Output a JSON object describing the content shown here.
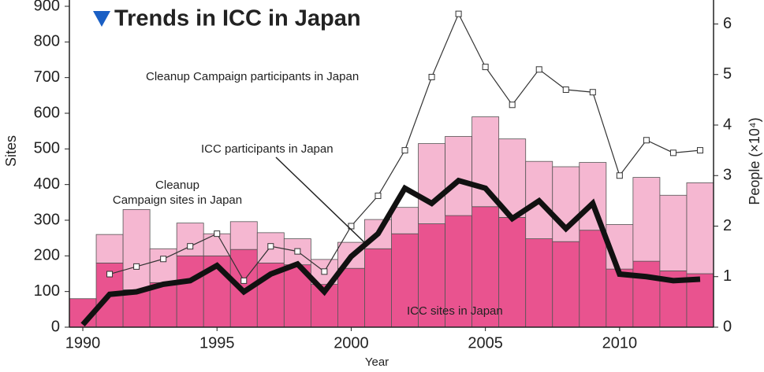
{
  "chart_data": {
    "type": "bar",
    "title": "Trends in ICC in Japan",
    "x_label": "Year",
    "y_label": "Sites",
    "y2_label": "People (×10⁴)",
    "x": [
      1990,
      1991,
      1992,
      1993,
      1994,
      1995,
      1996,
      1997,
      1998,
      1999,
      2000,
      2001,
      2002,
      2003,
      2004,
      2005,
      2006,
      2007,
      2008,
      2009,
      2010,
      2011,
      2012,
      2013
    ],
    "xlim": [
      1989.5,
      2013.5
    ],
    "xticks": [
      1990,
      1995,
      2000,
      2005,
      2010
    ],
    "ylim": [
      0,
      900
    ],
    "yticks": [
      0,
      100,
      200,
      300,
      400,
      500,
      600,
      700,
      800,
      900
    ],
    "y2lim": [
      0,
      6.35
    ],
    "y2ticks": [
      0,
      1,
      2,
      3,
      4,
      5,
      6
    ],
    "stacked": true,
    "series": [
      {
        "name": "ICC sites in Japan",
        "color": "#e9538f",
        "values": [
          80,
          180,
          105,
          125,
          200,
          200,
          218,
          180,
          175,
          120,
          165,
          220,
          262,
          290,
          313,
          338,
          308,
          248,
          240,
          272,
          163,
          185,
          158,
          150
        ]
      },
      {
        "name": "Cleanup\nCampaign sites in Japan",
        "color": "#f5b7d1",
        "values": [
          0,
          80,
          225,
          95,
          92,
          62,
          78,
          85,
          73,
          70,
          73,
          82,
          74,
          225,
          222,
          252,
          220,
          217,
          210,
          190,
          125,
          235,
          212,
          255
        ]
      },
      {
        "name": "Cleanup Campaign participants in Japan",
        "color": "#333333",
        "axis": "y2",
        "type": "line",
        "values": [
          null,
          1.05,
          1.2,
          1.35,
          1.6,
          1.85,
          0.92,
          1.6,
          1.5,
          1.1,
          2.0,
          2.6,
          3.5,
          4.95,
          6.2,
          5.15,
          4.4,
          5.1,
          4.7,
          4.65,
          3.0,
          3.7,
          3.45,
          3.5
        ]
      },
      {
        "name": "ICC participants in Japan",
        "color": "#111111",
        "axis": "y2",
        "type": "line",
        "values": [
          0.05,
          0.65,
          0.7,
          0.85,
          0.92,
          1.22,
          0.7,
          1.05,
          1.25,
          0.7,
          1.4,
          1.85,
          2.75,
          2.45,
          2.9,
          2.75,
          2.15,
          2.5,
          1.95,
          2.45,
          1.05,
          1.0,
          0.92,
          0.95
        ]
      }
    ]
  }
}
